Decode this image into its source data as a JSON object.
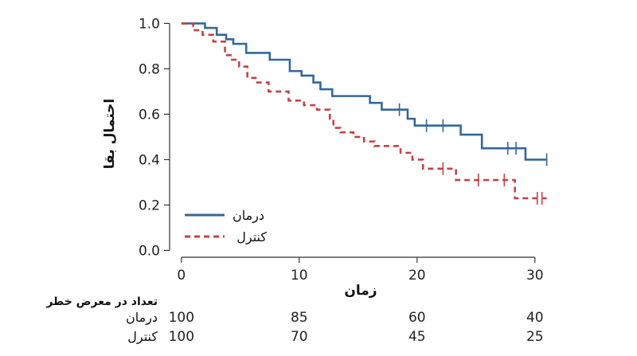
{
  "chart_data": {
    "type": "line",
    "step": true,
    "xlabel": "زمان",
    "ylabel": "احتمال بقا",
    "xlim": [
      -1,
      31.5
    ],
    "ylim": [
      -0.03,
      1.04
    ],
    "x_ticks": [
      0,
      10,
      20,
      30
    ],
    "y_ticks": [
      0.0,
      0.2,
      0.4,
      0.6,
      0.8,
      1.0
    ],
    "y_tick_labels": [
      "0.0",
      "0.2",
      "0.4",
      "0.6",
      "0.8",
      "1.0"
    ],
    "grid": false,
    "legend_position": "bottom-left",
    "series": [
      {
        "name": "درمان",
        "color": "#33689a",
        "dash": "solid",
        "steps": [
          [
            0,
            1.0
          ],
          [
            2,
            0.98
          ],
          [
            3,
            0.95
          ],
          [
            3.8,
            0.93
          ],
          [
            4.4,
            0.91
          ],
          [
            5.5,
            0.87
          ],
          [
            7.5,
            0.84
          ],
          [
            9.2,
            0.79
          ],
          [
            10.2,
            0.77
          ],
          [
            11.2,
            0.74
          ],
          [
            11.8,
            0.71
          ],
          [
            12.8,
            0.68
          ],
          [
            16,
            0.65
          ],
          [
            17,
            0.62
          ],
          [
            19.2,
            0.58
          ],
          [
            19.8,
            0.55
          ],
          [
            23.7,
            0.51
          ],
          [
            25.5,
            0.45
          ],
          [
            29.2,
            0.4
          ],
          [
            31,
            0.4
          ]
        ],
        "censored": [
          18.5,
          20.8,
          22.2,
          27.7,
          28.4,
          31
        ]
      },
      {
        "name": "کنترل",
        "color": "#c24448",
        "dash": "dashed",
        "steps": [
          [
            0,
            1.0
          ],
          [
            1,
            0.97
          ],
          [
            1.8,
            0.95
          ],
          [
            2.7,
            0.92
          ],
          [
            3.7,
            0.86
          ],
          [
            4.3,
            0.84
          ],
          [
            4.9,
            0.81
          ],
          [
            5.6,
            0.76
          ],
          [
            6.3,
            0.74
          ],
          [
            7.4,
            0.7
          ],
          [
            9.1,
            0.66
          ],
          [
            10.4,
            0.64
          ],
          [
            11.5,
            0.62
          ],
          [
            12.6,
            0.58
          ],
          [
            12.9,
            0.54
          ],
          [
            13.5,
            0.52
          ],
          [
            14.6,
            0.5
          ],
          [
            15.5,
            0.48
          ],
          [
            16.4,
            0.46
          ],
          [
            18.6,
            0.43
          ],
          [
            19.6,
            0.4
          ],
          [
            20.5,
            0.36
          ],
          [
            23.3,
            0.31
          ],
          [
            28.3,
            0.23
          ],
          [
            31,
            0.23
          ]
        ],
        "censored": [
          22.2,
          25.2,
          27.4,
          30.2,
          30.6
        ]
      }
    ],
    "risk_table": {
      "title": "تعداد در معرض خطر",
      "times": [
        0,
        10,
        20,
        30
      ],
      "rows": [
        {
          "name": "درمان",
          "values": [
            "100",
            "85",
            "60",
            "40"
          ]
        },
        {
          "name": "کنترل",
          "values": [
            "100",
            "70",
            "45",
            "25"
          ]
        }
      ]
    }
  }
}
